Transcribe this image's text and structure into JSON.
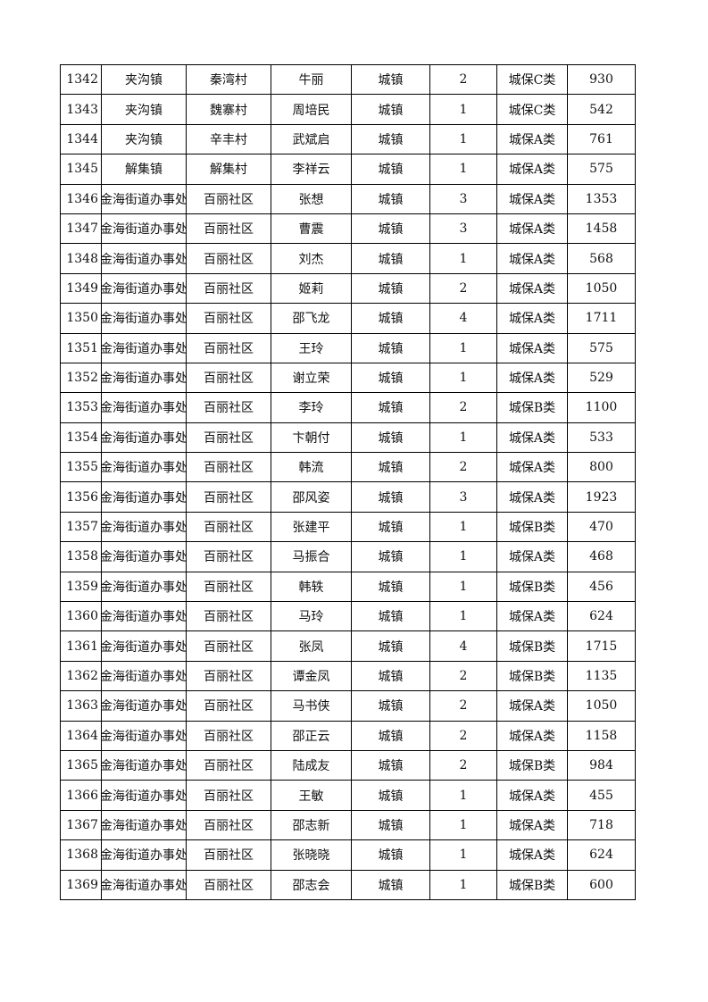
{
  "rows": [
    [
      "1342",
      "夹沟镇",
      "秦湾村",
      "牛丽",
      "城镇",
      "2",
      "城保C类",
      "930"
    ],
    [
      "1343",
      "夹沟镇",
      "魏寨村",
      "周培民",
      "城镇",
      "1",
      "城保C类",
      "542"
    ],
    [
      "1344",
      "夹沟镇",
      "辛丰村",
      "武斌启",
      "城镇",
      "1",
      "城保A类",
      "761"
    ],
    [
      "1345",
      "解集镇",
      "解集村",
      "李祥云",
      "城镇",
      "1",
      "城保A类",
      "575"
    ],
    [
      "1346",
      "金海街道办事处",
      "百丽社区",
      "张想",
      "城镇",
      "3",
      "城保A类",
      "1353"
    ],
    [
      "1347",
      "金海街道办事处",
      "百丽社区",
      "曹震",
      "城镇",
      "3",
      "城保A类",
      "1458"
    ],
    [
      "1348",
      "金海街道办事处",
      "百丽社区",
      "刘杰",
      "城镇",
      "1",
      "城保A类",
      "568"
    ],
    [
      "1349",
      "金海街道办事处",
      "百丽社区",
      "姬莉",
      "城镇",
      "2",
      "城保A类",
      "1050"
    ],
    [
      "1350",
      "金海街道办事处",
      "百丽社区",
      "邵飞龙",
      "城镇",
      "4",
      "城保A类",
      "1711"
    ],
    [
      "1351",
      "金海街道办事处",
      "百丽社区",
      "王玲",
      "城镇",
      "1",
      "城保A类",
      "575"
    ],
    [
      "1352",
      "金海街道办事处",
      "百丽社区",
      "谢立荣",
      "城镇",
      "1",
      "城保A类",
      "529"
    ],
    [
      "1353",
      "金海街道办事处",
      "百丽社区",
      "李玲",
      "城镇",
      "2",
      "城保B类",
      "1100"
    ],
    [
      "1354",
      "金海街道办事处",
      "百丽社区",
      "卞朝付",
      "城镇",
      "1",
      "城保A类",
      "533"
    ],
    [
      "1355",
      "金海街道办事处",
      "百丽社区",
      "韩流",
      "城镇",
      "2",
      "城保A类",
      "800"
    ],
    [
      "1356",
      "金海街道办事处",
      "百丽社区",
      "邵风姿",
      "城镇",
      "3",
      "城保A类",
      "1923"
    ],
    [
      "1357",
      "金海街道办事处",
      "百丽社区",
      "张建平",
      "城镇",
      "1",
      "城保B类",
      "470"
    ],
    [
      "1358",
      "金海街道办事处",
      "百丽社区",
      "马振合",
      "城镇",
      "1",
      "城保A类",
      "468"
    ],
    [
      "1359",
      "金海街道办事处",
      "百丽社区",
      "韩轶",
      "城镇",
      "1",
      "城保B类",
      "456"
    ],
    [
      "1360",
      "金海街道办事处",
      "百丽社区",
      "马玲",
      "城镇",
      "1",
      "城保A类",
      "624"
    ],
    [
      "1361",
      "金海街道办事处",
      "百丽社区",
      "张凤",
      "城镇",
      "4",
      "城保B类",
      "1715"
    ],
    [
      "1362",
      "金海街道办事处",
      "百丽社区",
      "谭金凤",
      "城镇",
      "2",
      "城保B类",
      "1135"
    ],
    [
      "1363",
      "金海街道办事处",
      "百丽社区",
      "马书侠",
      "城镇",
      "2",
      "城保A类",
      "1050"
    ],
    [
      "1364",
      "金海街道办事处",
      "百丽社区",
      "邵正云",
      "城镇",
      "2",
      "城保A类",
      "1158"
    ],
    [
      "1365",
      "金海街道办事处",
      "百丽社区",
      "陆成友",
      "城镇",
      "2",
      "城保B类",
      "984"
    ],
    [
      "1366",
      "金海街道办事处",
      "百丽社区",
      "王敏",
      "城镇",
      "1",
      "城保A类",
      "455"
    ],
    [
      "1367",
      "金海街道办事处",
      "百丽社区",
      "邵志新",
      "城镇",
      "1",
      "城保A类",
      "718"
    ],
    [
      "1368",
      "金海街道办事处",
      "百丽社区",
      "张晓晓",
      "城镇",
      "1",
      "城保A类",
      "624"
    ],
    [
      "1369",
      "金海街道办事处",
      "百丽社区",
      "邵志会",
      "城镇",
      "1",
      "城保B类",
      "600"
    ]
  ]
}
